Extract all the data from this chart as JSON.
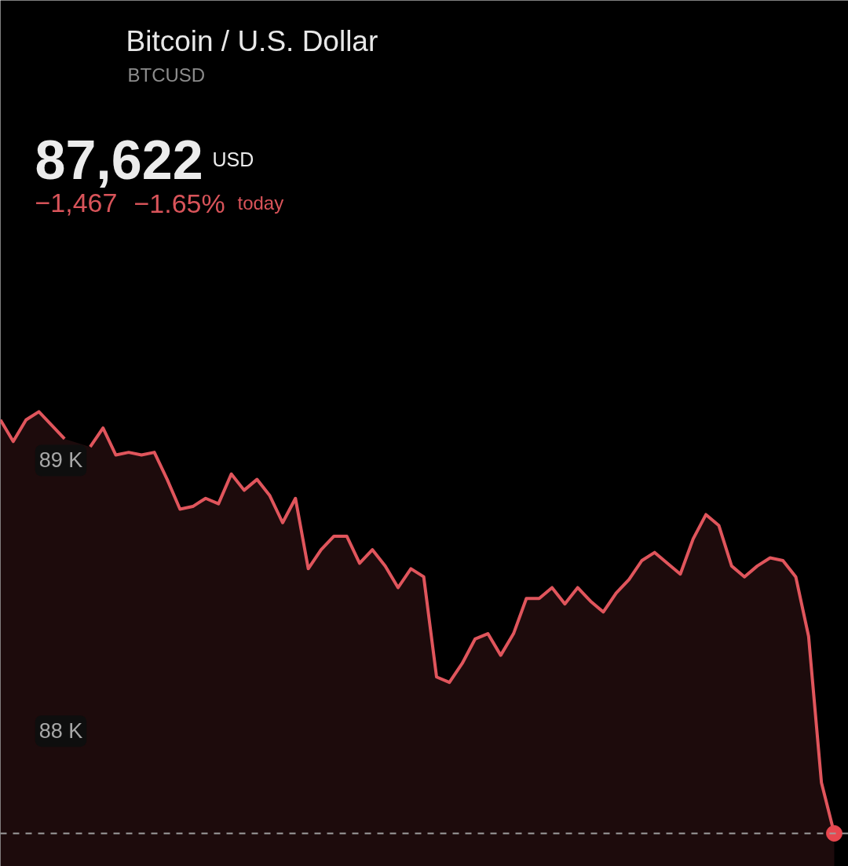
{
  "chart_data": {
    "type": "area",
    "title": "Bitcoin / U.S. Dollar",
    "subtitle": "BTCUSD",
    "annotations": [
      "87,622",
      "USD",
      "−1,467",
      "−1.65%",
      "today"
    ],
    "categories": [
      null,
      null,
      null,
      null,
      null,
      null,
      null,
      null,
      null,
      null,
      null,
      null,
      null,
      null,
      null,
      null,
      null,
      null,
      null,
      null,
      null,
      null,
      null,
      null,
      null,
      null,
      null,
      null,
      null,
      null,
      null,
      null,
      null,
      null,
      null,
      null,
      null,
      null,
      null,
      null,
      null,
      null,
      null,
      null,
      null,
      null,
      null,
      null,
      null,
      null,
      null,
      null,
      null,
      null,
      null,
      null,
      null,
      null,
      null,
      null,
      null,
      null,
      null,
      null,
      null,
      null
    ],
    "series": [
      {
        "color": "#e0555c",
        "values": [
          89150,
          89070,
          89150,
          89180,
          89130,
          89080,
          null,
          89050,
          89120,
          89020,
          89030,
          89020,
          89030,
          88930,
          88820,
          88830,
          88860,
          88840,
          88950,
          88890,
          88930,
          88870,
          88770,
          88860,
          88600,
          88670,
          88720,
          88720,
          88620,
          88670,
          88610,
          88530,
          88600,
          88570,
          88200,
          88180,
          88250,
          88340,
          88360,
          88280,
          88360,
          88490,
          88490,
          88530,
          88470,
          88530,
          88480,
          88440,
          88510,
          88560,
          88630,
          88660,
          88620,
          88580,
          88710,
          88800,
          88760,
          88610,
          88570,
          88610,
          88640,
          88630,
          88570,
          88350,
          87810,
          87622
        ]
      },
      {
        "type": "scatter",
        "color": "#e8474f",
        "marker": "circle",
        "values": [
          null,
          null,
          null,
          null,
          null,
          null,
          null,
          null,
          null,
          null,
          null,
          null,
          null,
          null,
          null,
          null,
          null,
          null,
          null,
          null,
          null,
          null,
          null,
          null,
          null,
          null,
          null,
          null,
          null,
          null,
          null,
          null,
          null,
          null,
          null,
          null,
          null,
          null,
          null,
          null,
          null,
          null,
          null,
          null,
          null,
          null,
          null,
          null,
          null,
          null,
          null,
          null,
          null,
          null,
          null,
          null,
          null,
          null,
          null,
          null,
          null,
          null,
          null,
          null,
          null,
          87622
        ]
      }
    ],
    "ylim": [
      87500,
      90700
    ],
    "yticks": [
      {
        "value": 89000,
        "label": "89 K"
      },
      {
        "value": 88000,
        "label": "88 K"
      }
    ],
    "tick_labels": "y",
    "grid": false,
    "ref_lines": [
      {
        "axis": "y",
        "value": 87622,
        "color": "#9e9e9e",
        "line_style": "dashed"
      }
    ]
  }
}
